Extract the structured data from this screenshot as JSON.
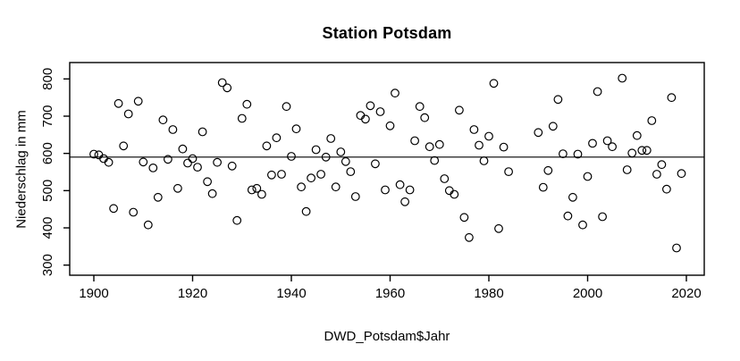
{
  "page": {
    "background": "#ffffff",
    "foreground": "#000000"
  },
  "chart_data": {
    "type": "scatter",
    "title": "Station Potsdam",
    "xlabel": "DWD_Potsdam$Jahr",
    "ylabel": "Niederschlag in mm",
    "x_ticks": [
      1900,
      1920,
      1940,
      1960,
      1980,
      2000,
      2020
    ],
    "y_ticks": [
      300,
      400,
      500,
      600,
      700,
      800
    ],
    "xlim": [
      1895.2,
      2023.8
    ],
    "ylim": [
      273,
      844
    ],
    "grid": false,
    "legend_position": "none",
    "marker": "open-circle",
    "marker_color": "#000000",
    "mean_line_y": 590,
    "points": [
      [
        1900,
        598
      ],
      [
        1901,
        596
      ],
      [
        1902,
        586
      ],
      [
        1903,
        576
      ],
      [
        1904,
        452
      ],
      [
        1905,
        734
      ],
      [
        1906,
        620
      ],
      [
        1907,
        706
      ],
      [
        1908,
        442
      ],
      [
        1909,
        740
      ],
      [
        1910,
        577
      ],
      [
        1911,
        408
      ],
      [
        1912,
        561
      ],
      [
        1913,
        482
      ],
      [
        1914,
        690
      ],
      [
        1915,
        584
      ],
      [
        1916,
        664
      ],
      [
        1917,
        506
      ],
      [
        1918,
        612
      ],
      [
        1919,
        574
      ],
      [
        1920,
        586
      ],
      [
        1921,
        563
      ],
      [
        1922,
        658
      ],
      [
        1923,
        524
      ],
      [
        1924,
        492
      ],
      [
        1925,
        576
      ],
      [
        1926,
        790
      ],
      [
        1927,
        776
      ],
      [
        1928,
        566
      ],
      [
        1929,
        420
      ],
      [
        1930,
        694
      ],
      [
        1931,
        732
      ],
      [
        1932,
        502
      ],
      [
        1933,
        506
      ],
      [
        1934,
        490
      ],
      [
        1935,
        620
      ],
      [
        1936,
        542
      ],
      [
        1937,
        642
      ],
      [
        1938,
        544
      ],
      [
        1939,
        726
      ],
      [
        1940,
        592
      ],
      [
        1941,
        666
      ],
      [
        1942,
        510
      ],
      [
        1943,
        444
      ],
      [
        1944,
        534
      ],
      [
        1945,
        610
      ],
      [
        1946,
        544
      ],
      [
        1947,
        590
      ],
      [
        1948,
        640
      ],
      [
        1949,
        510
      ],
      [
        1950,
        604
      ],
      [
        1951,
        578
      ],
      [
        1952,
        551
      ],
      [
        1953,
        484
      ],
      [
        1954,
        702
      ],
      [
        1955,
        692
      ],
      [
        1956,
        728
      ],
      [
        1957,
        572
      ],
      [
        1958,
        712
      ],
      [
        1959,
        502
      ],
      [
        1960,
        674
      ],
      [
        1961,
        762
      ],
      [
        1962,
        516
      ],
      [
        1963,
        470
      ],
      [
        1964,
        502
      ],
      [
        1965,
        634
      ],
      [
        1966,
        726
      ],
      [
        1967,
        696
      ],
      [
        1968,
        618
      ],
      [
        1969,
        581
      ],
      [
        1970,
        624
      ],
      [
        1971,
        532
      ],
      [
        1972,
        500
      ],
      [
        1973,
        490
      ],
      [
        1974,
        716
      ],
      [
        1975,
        428
      ],
      [
        1976,
        374
      ],
      [
        1977,
        664
      ],
      [
        1978,
        622
      ],
      [
        1979,
        580
      ],
      [
        1980,
        646
      ],
      [
        1981,
        788
      ],
      [
        1982,
        398
      ],
      [
        1983,
        617
      ],
      [
        1984,
        551
      ],
      [
        1990,
        656
      ],
      [
        1991,
        509
      ],
      [
        1992,
        554
      ],
      [
        1993,
        673
      ],
      [
        1994,
        745
      ],
      [
        1995,
        599
      ],
      [
        1996,
        432
      ],
      [
        1997,
        482
      ],
      [
        1998,
        598
      ],
      [
        1999,
        408
      ],
      [
        2000,
        538
      ],
      [
        2001,
        627
      ],
      [
        2002,
        766
      ],
      [
        2003,
        430
      ],
      [
        2004,
        634
      ],
      [
        2005,
        618
      ],
      [
        2007,
        802
      ],
      [
        2008,
        556
      ],
      [
        2009,
        601
      ],
      [
        2010,
        648
      ],
      [
        2011,
        608
      ],
      [
        2012,
        608
      ],
      [
        2013,
        688
      ],
      [
        2014,
        544
      ],
      [
        2015,
        570
      ],
      [
        2016,
        504
      ],
      [
        2017,
        750
      ],
      [
        2018,
        346
      ],
      [
        2019,
        546
      ]
    ]
  }
}
